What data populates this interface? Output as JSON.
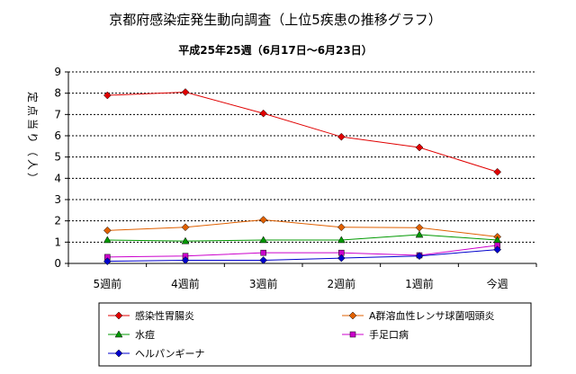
{
  "chart_data": {
    "type": "line",
    "title": "京都府感染症発生動向調査（上位5疾患の推移グラフ）",
    "subtitle": "平成25年25週（6月17日～6月23日）",
    "ylabel": "定点当り（人）",
    "xlabel": "",
    "ylim": [
      0,
      9
    ],
    "yticks": [
      "0",
      "1",
      "2",
      "3",
      "4",
      "5",
      "6",
      "7",
      "8",
      "9"
    ],
    "grid": true,
    "categories": [
      "5週前",
      "4週前",
      "3週前",
      "2週前",
      "1週前",
      "今週"
    ],
    "legend_position": "bottom",
    "series": [
      {
        "name": "感染性胃腸炎",
        "color": "#e00000",
        "marker": "diamond",
        "values": [
          7.9,
          8.05,
          7.05,
          5.95,
          5.45,
          4.3
        ]
      },
      {
        "name": "A群溶血性レンサ球菌咽頭炎",
        "color": "#e06000",
        "marker": "diamond",
        "values": [
          1.55,
          1.7,
          2.05,
          1.7,
          1.68,
          1.25
        ]
      },
      {
        "name": "水痘",
        "color": "#009900",
        "marker": "triangle",
        "values": [
          1.1,
          1.05,
          1.1,
          1.1,
          1.35,
          1.1
        ]
      },
      {
        "name": "手足口病",
        "color": "#cc00cc",
        "marker": "square",
        "values": [
          0.3,
          0.35,
          0.5,
          0.5,
          0.38,
          0.85
        ]
      },
      {
        "name": "ヘルパンギーナ",
        "color": "#0000cc",
        "marker": "diamond",
        "values": [
          0.1,
          0.15,
          0.15,
          0.25,
          0.35,
          0.65
        ]
      }
    ]
  }
}
